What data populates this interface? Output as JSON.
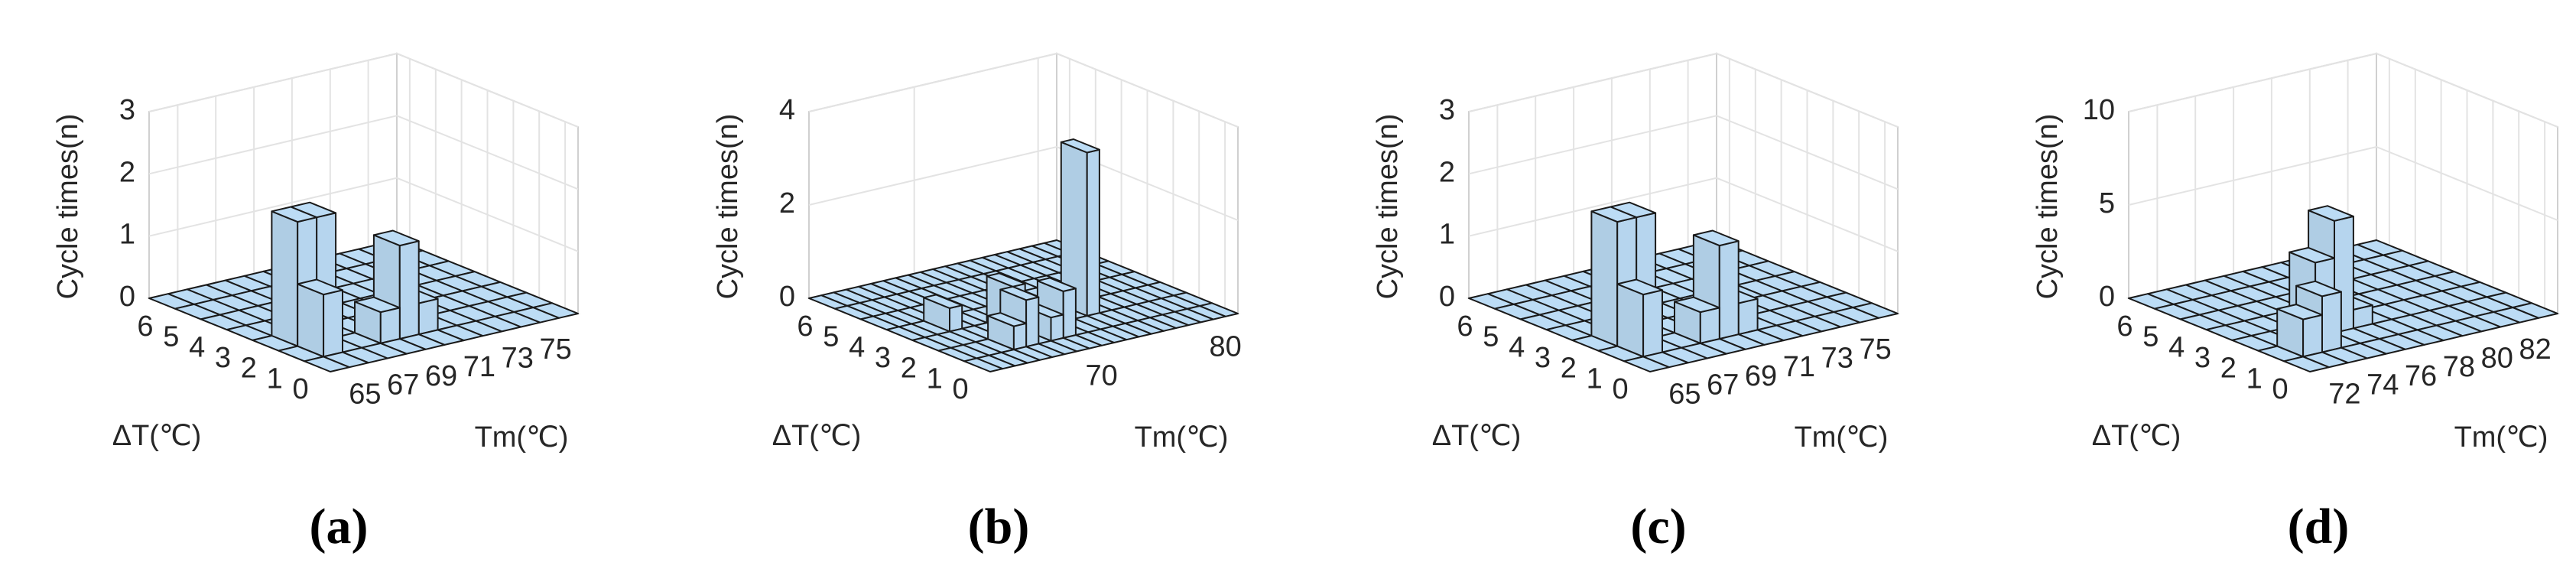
{
  "chart_data": [
    {
      "type": "bar3d",
      "panel_label": "(a)",
      "zlabel": "Cycle times(n)",
      "ylabel": "ΔT(℃)",
      "xlabel": "Tm(℃)",
      "x": [
        64,
        65,
        66,
        67,
        68,
        69,
        70,
        71,
        72,
        73,
        74,
        75,
        76
      ],
      "y": [
        0,
        1,
        2,
        3,
        4,
        5,
        6
      ],
      "values": [
        [
          0,
          0,
          0,
          0,
          0,
          0,
          0,
          0,
          0,
          0,
          0,
          0,
          0
        ],
        [
          0,
          1,
          0,
          0,
          0.5,
          1.5,
          0.5,
          0,
          0,
          0,
          0,
          0,
          0
        ],
        [
          0,
          2,
          2,
          0,
          0,
          0,
          0,
          0,
          0,
          0,
          0,
          0,
          0
        ],
        [
          0,
          0,
          0,
          0,
          0,
          0,
          0,
          0,
          0,
          0,
          0,
          0,
          0
        ],
        [
          0,
          0,
          0,
          0,
          0,
          0,
          0,
          0,
          0,
          0,
          0,
          0,
          0
        ],
        [
          0,
          0,
          0,
          0,
          0,
          0,
          0,
          0,
          0,
          0,
          0,
          0,
          0
        ],
        [
          0,
          0,
          0,
          0,
          0,
          0,
          0,
          0,
          0,
          0,
          0,
          0,
          0
        ]
      ],
      "color": "#bcdcf5",
      "xlim": [
        63.5,
        76.5
      ],
      "ylim": [
        -0.5,
        6.5
      ],
      "zlim": [
        0,
        3
      ],
      "xticks": [
        65,
        67,
        69,
        71,
        73,
        75
      ],
      "yticks": [
        0,
        1,
        2,
        3,
        4,
        5,
        6
      ],
      "zticks": [
        0,
        1,
        2,
        3
      ],
      "grid": true
    },
    {
      "type": "bar3d",
      "panel_label": "(b)",
      "zlabel": "Cycle times(n)",
      "ylabel": "ΔT(℃)",
      "xlabel": "Tm(℃)",
      "x": [
        62,
        63,
        64,
        65,
        66,
        67,
        68,
        69,
        70,
        71,
        72,
        73,
        74,
        75,
        76,
        77,
        78,
        79,
        80,
        81
      ],
      "y": [
        0,
        1,
        2,
        3,
        4,
        5,
        6
      ],
      "values": [
        [
          0,
          0,
          0,
          0,
          0,
          0,
          0,
          0,
          0,
          0,
          0,
          0,
          0,
          0,
          0,
          0,
          0,
          0,
          0,
          0
        ],
        [
          0,
          0,
          0,
          0,
          0.5,
          1,
          0,
          0.5,
          1,
          0,
          0,
          0,
          0,
          0,
          0,
          0,
          0,
          0,
          0,
          0
        ],
        [
          0,
          0,
          0,
          0,
          0,
          0,
          1,
          0,
          0,
          0.5,
          0,
          0,
          3.5,
          0,
          0,
          0,
          0,
          0,
          0,
          0
        ],
        [
          0,
          0,
          0,
          0.5,
          0,
          0,
          0,
          0,
          0,
          0,
          0,
          0,
          0,
          0,
          0,
          0,
          0,
          0,
          0,
          0
        ],
        [
          0,
          0,
          0,
          0,
          0,
          0,
          0,
          0,
          0,
          0,
          0,
          0,
          0,
          0,
          0,
          0,
          0,
          0,
          0,
          0
        ],
        [
          0,
          0,
          0,
          0,
          0,
          0,
          0,
          0,
          0,
          0,
          0,
          0,
          0,
          0,
          0,
          0,
          0,
          0,
          0,
          0
        ],
        [
          0,
          0,
          0,
          0,
          0,
          0,
          0,
          0,
          0,
          0,
          0,
          0,
          0,
          0,
          0,
          0,
          0,
          0,
          0,
          0
        ]
      ],
      "color": "#bcdcf5",
      "xlim": [
        61.5,
        81.5
      ],
      "ylim": [
        -0.5,
        6.5
      ],
      "zlim": [
        0,
        4
      ],
      "xticks": [
        70,
        80
      ],
      "yticks": [
        0,
        1,
        2,
        3,
        4,
        5,
        6
      ],
      "zticks": [
        0,
        2,
        4
      ],
      "grid": true
    },
    {
      "type": "bar3d",
      "panel_label": "(c)",
      "zlabel": "Cycle times(n)",
      "ylabel": "ΔT(℃)",
      "xlabel": "Tm(℃)",
      "x": [
        64,
        65,
        66,
        67,
        68,
        69,
        70,
        71,
        72,
        73,
        74,
        75,
        76
      ],
      "y": [
        0,
        1,
        2,
        3,
        4,
        5,
        6
      ],
      "values": [
        [
          0,
          0,
          0,
          0,
          0,
          0,
          0,
          0,
          0,
          0,
          0,
          0,
          0
        ],
        [
          0,
          1,
          0,
          0,
          0.5,
          1.5,
          0.5,
          0,
          0,
          0,
          0,
          0,
          0
        ],
        [
          0,
          2,
          2,
          0,
          0,
          0,
          0,
          0,
          0,
          0,
          0,
          0,
          0
        ],
        [
          0,
          0,
          0,
          0,
          0,
          0,
          0,
          0,
          0,
          0,
          0,
          0,
          0
        ],
        [
          0,
          0,
          0,
          0,
          0,
          0,
          0,
          0,
          0,
          0,
          0,
          0,
          0
        ],
        [
          0,
          0,
          0,
          0,
          0,
          0,
          0,
          0,
          0,
          0,
          0,
          0,
          0
        ],
        [
          0,
          0,
          0,
          0,
          0,
          0,
          0,
          0,
          0,
          0,
          0,
          0,
          0
        ]
      ],
      "color": "#bcdcf5",
      "xlim": [
        63.5,
        76.5
      ],
      "ylim": [
        -0.5,
        6.5
      ],
      "zlim": [
        0,
        3
      ],
      "xticks": [
        65,
        67,
        69,
        71,
        73,
        75
      ],
      "yticks": [
        0,
        1,
        2,
        3,
        4,
        5,
        6
      ],
      "zticks": [
        0,
        1,
        2,
        3
      ],
      "grid": true
    },
    {
      "type": "bar3d",
      "panel_label": "(d)",
      "zlabel": "Cycle times(n)",
      "ylabel": "ΔT(℃)",
      "xlabel": "Tm(℃)",
      "x": [
        71,
        72,
        73,
        74,
        75,
        76,
        77,
        78,
        79,
        80,
        81,
        82,
        83
      ],
      "y": [
        0,
        1,
        2,
        3,
        4,
        5,
        6
      ],
      "values": [
        [
          0,
          0,
          0,
          0,
          0,
          0,
          0,
          0,
          0,
          0,
          0,
          0,
          0
        ],
        [
          0,
          2,
          3,
          0,
          0,
          0,
          0,
          0,
          0,
          0,
          0,
          0,
          0
        ],
        [
          0,
          0,
          0,
          4,
          6,
          1,
          0,
          0,
          0,
          0,
          0,
          0,
          0
        ],
        [
          0,
          0,
          0,
          0,
          0,
          0,
          0,
          0,
          0,
          0,
          0,
          0,
          0
        ],
        [
          0,
          0,
          0,
          0,
          0,
          0,
          0,
          0,
          0,
          0,
          0,
          0,
          0
        ],
        [
          0,
          0,
          0,
          0,
          0,
          0,
          0,
          0,
          0,
          0,
          0,
          0,
          0
        ],
        [
          0,
          0,
          0,
          0,
          0,
          0,
          0,
          0,
          0,
          0,
          0,
          0,
          0
        ]
      ],
      "color": "#bcdcf5",
      "xlim": [
        70.5,
        83.5
      ],
      "ylim": [
        -0.5,
        6.5
      ],
      "zlim": [
        0,
        10
      ],
      "xticks": [
        72,
        74,
        76,
        78,
        80,
        82
      ],
      "yticks": [
        0,
        1,
        2,
        3,
        4,
        5,
        6
      ],
      "zticks": [
        0,
        5,
        10
      ],
      "grid": true
    }
  ]
}
